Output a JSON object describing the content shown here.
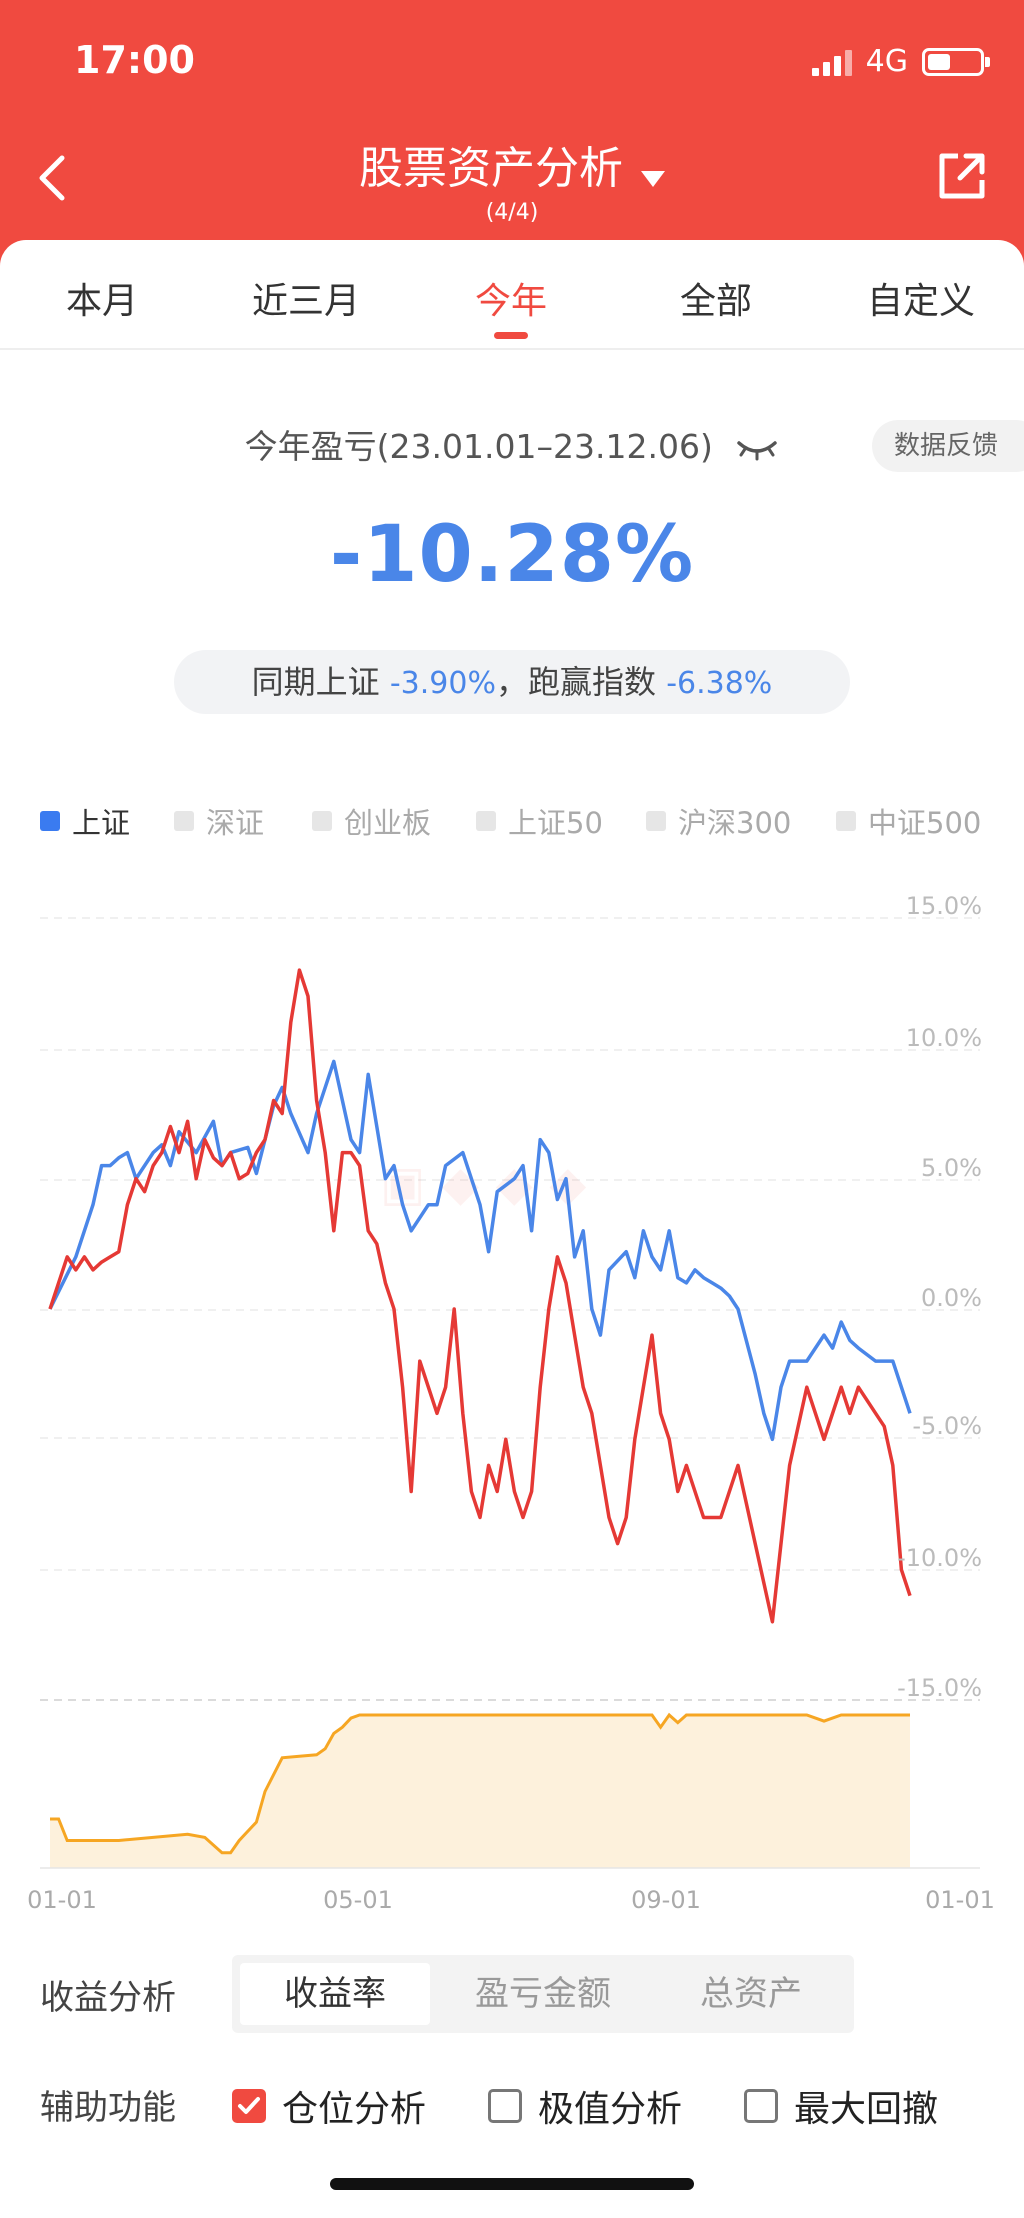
{
  "status": {
    "time": "17:00",
    "network": "4G"
  },
  "header": {
    "title": "股票资产分析",
    "subtitle": "(4/4)"
  },
  "tabs": [
    {
      "label": "本月"
    },
    {
      "label": "近三月"
    },
    {
      "label": "今年"
    },
    {
      "label": "全部"
    },
    {
      "label": "自定义"
    }
  ],
  "summary": {
    "label": "今年盈亏(23.01.01–23.12.06)",
    "feedback": "数据反馈",
    "value": "-10.28%",
    "compare_prefix": "同期上证",
    "compare_index_value": "-3.90%",
    "compare_mid": "，跑赢指数",
    "compare_diff_value": "-6.38%"
  },
  "legend": [
    {
      "label": "上证",
      "active": true
    },
    {
      "label": "深证",
      "active": false
    },
    {
      "label": "创业板",
      "active": false
    },
    {
      "label": "上证50",
      "active": false
    },
    {
      "label": "沪深300",
      "active": false
    },
    {
      "label": "中证500",
      "active": false
    }
  ],
  "chart_data": {
    "type": "line",
    "y_ticks": [
      "15.0%",
      "10.0%",
      "5.0%",
      "0.0%",
      "-5.0%",
      "-10.0%",
      "-15.0%"
    ],
    "x_ticks": [
      "01-01",
      "05-01",
      "09-01",
      "01-01"
    ],
    "ylim": [
      -15,
      15
    ],
    "series": [
      {
        "color": "#4a86e8",
        "x": [
          0,
          3,
          4,
          5,
          6,
          7,
          8,
          9,
          10,
          12,
          13,
          14,
          15,
          17,
          19,
          20,
          21,
          23,
          24,
          25,
          26,
          27,
          28,
          30,
          31,
          33,
          34,
          35,
          36,
          37,
          38,
          39,
          40,
          41,
          42,
          44,
          45,
          46,
          48,
          49,
          50,
          51,
          52,
          54,
          55,
          56,
          57,
          58,
          59,
          60,
          61,
          62,
          63,
          64,
          65,
          67,
          68,
          69,
          70,
          71,
          72,
          73,
          74,
          75,
          76,
          77,
          78,
          79,
          80,
          82,
          83,
          84,
          85,
          86,
          88,
          90,
          91,
          92,
          93,
          94,
          96,
          97,
          98,
          99,
          100
        ],
        "y": [
          0,
          2,
          3,
          4,
          5.5,
          5.5,
          5.8,
          6,
          5,
          6,
          6.3,
          5.5,
          6.8,
          6,
          7.2,
          5.5,
          6,
          6.2,
          5.2,
          6.5,
          7.8,
          8.5,
          7.5,
          6,
          7.5,
          9.5,
          8,
          6.5,
          6,
          9,
          7,
          5,
          5.5,
          4,
          3,
          4,
          4,
          5.5,
          6,
          5,
          4,
          2.2,
          4.5,
          5,
          5.5,
          3,
          6.5,
          6,
          4.2,
          5,
          2,
          3,
          0,
          -1,
          1.5,
          2.2,
          1.2,
          3,
          2,
          1.5,
          3,
          1.2,
          1,
          1.5,
          1.2,
          1,
          0.8,
          0.5,
          0,
          -2.5,
          -4,
          -5,
          -3,
          -2,
          -2,
          -1,
          -1.5,
          -0.5,
          -1.2,
          -1.5,
          -2,
          -2,
          -2,
          -3,
          -4
        ]
      },
      {
        "color": "#e53935",
        "x": [
          0,
          1,
          2,
          3,
          4,
          5,
          6,
          7,
          8,
          9,
          10,
          11,
          12,
          13,
          14,
          15,
          16,
          17,
          18,
          19,
          20,
          21,
          22,
          23,
          24,
          25,
          26,
          27,
          28,
          29,
          30,
          31,
          32,
          33,
          34,
          35,
          36,
          37,
          38,
          39,
          40,
          41,
          42,
          43,
          44,
          45,
          46,
          47,
          48,
          49,
          50,
          51,
          52,
          53,
          54,
          55,
          56,
          57,
          58,
          59,
          60,
          61,
          62,
          63,
          64,
          65,
          66,
          67,
          68,
          69,
          70,
          71,
          72,
          73,
          74,
          75,
          76,
          77,
          78,
          79,
          80,
          82,
          84,
          86,
          88,
          90,
          91,
          92,
          93,
          94,
          96,
          97,
          98,
          99,
          100
        ],
        "y": [
          0,
          1,
          2,
          1.5,
          2,
          1.5,
          1.8,
          2,
          2.2,
          4,
          5,
          4.5,
          5.5,
          6,
          7,
          6,
          7.2,
          5,
          6.5,
          5.8,
          5.5,
          6,
          5,
          5.2,
          6,
          6.5,
          8,
          7.5,
          11,
          13,
          12,
          8,
          6,
          3,
          6,
          6,
          5.5,
          3,
          2.5,
          1,
          0,
          -3,
          -7,
          -2,
          -3,
          -4,
          -3,
          0,
          -4,
          -7,
          -8,
          -6,
          -7,
          -5,
          -7,
          -8,
          -7,
          -3,
          0,
          2,
          1,
          -1,
          -3,
          -4,
          -6,
          -8,
          -9,
          -8,
          -5,
          -3,
          -1,
          -4,
          -5,
          -7,
          -6,
          -7,
          -8,
          -8,
          -8,
          -7,
          -6,
          -9,
          -12,
          -6,
          -3,
          -5,
          -4,
          -3,
          -4,
          -3,
          -4,
          -4.5,
          -6,
          -10,
          -11
        ]
      },
      {
        "color": "#f6a623",
        "x": [
          0,
          1,
          2,
          5,
          8,
          12,
          16,
          18,
          20,
          21,
          22,
          24,
          25,
          27,
          29,
          31,
          32,
          33,
          34,
          35,
          36,
          40,
          50,
          60,
          70,
          71,
          72,
          73,
          74,
          80,
          88,
          90,
          92,
          94,
          100
        ],
        "y": [
          32,
          32,
          18,
          18,
          18,
          20,
          22,
          20,
          10,
          10,
          18,
          30,
          50,
          72,
          73,
          74,
          78,
          88,
          92,
          98,
          100,
          100,
          100,
          100,
          100,
          92,
          100,
          95,
          100,
          100,
          100,
          96,
          100,
          100,
          100
        ]
      }
    ],
    "area_ylim": [
      0,
      100
    ],
    "x_range": [
      0,
      100
    ]
  },
  "analysis": {
    "label": "收益分析",
    "options": [
      {
        "label": "收益率"
      },
      {
        "label": "盈亏金额"
      },
      {
        "label": "总资产"
      }
    ]
  },
  "aux": {
    "label": "辅助功能",
    "checks": [
      {
        "label": "仓位分析",
        "checked": true
      },
      {
        "label": "极值分析",
        "checked": false
      },
      {
        "label": "最大回撤",
        "checked": false
      }
    ]
  }
}
